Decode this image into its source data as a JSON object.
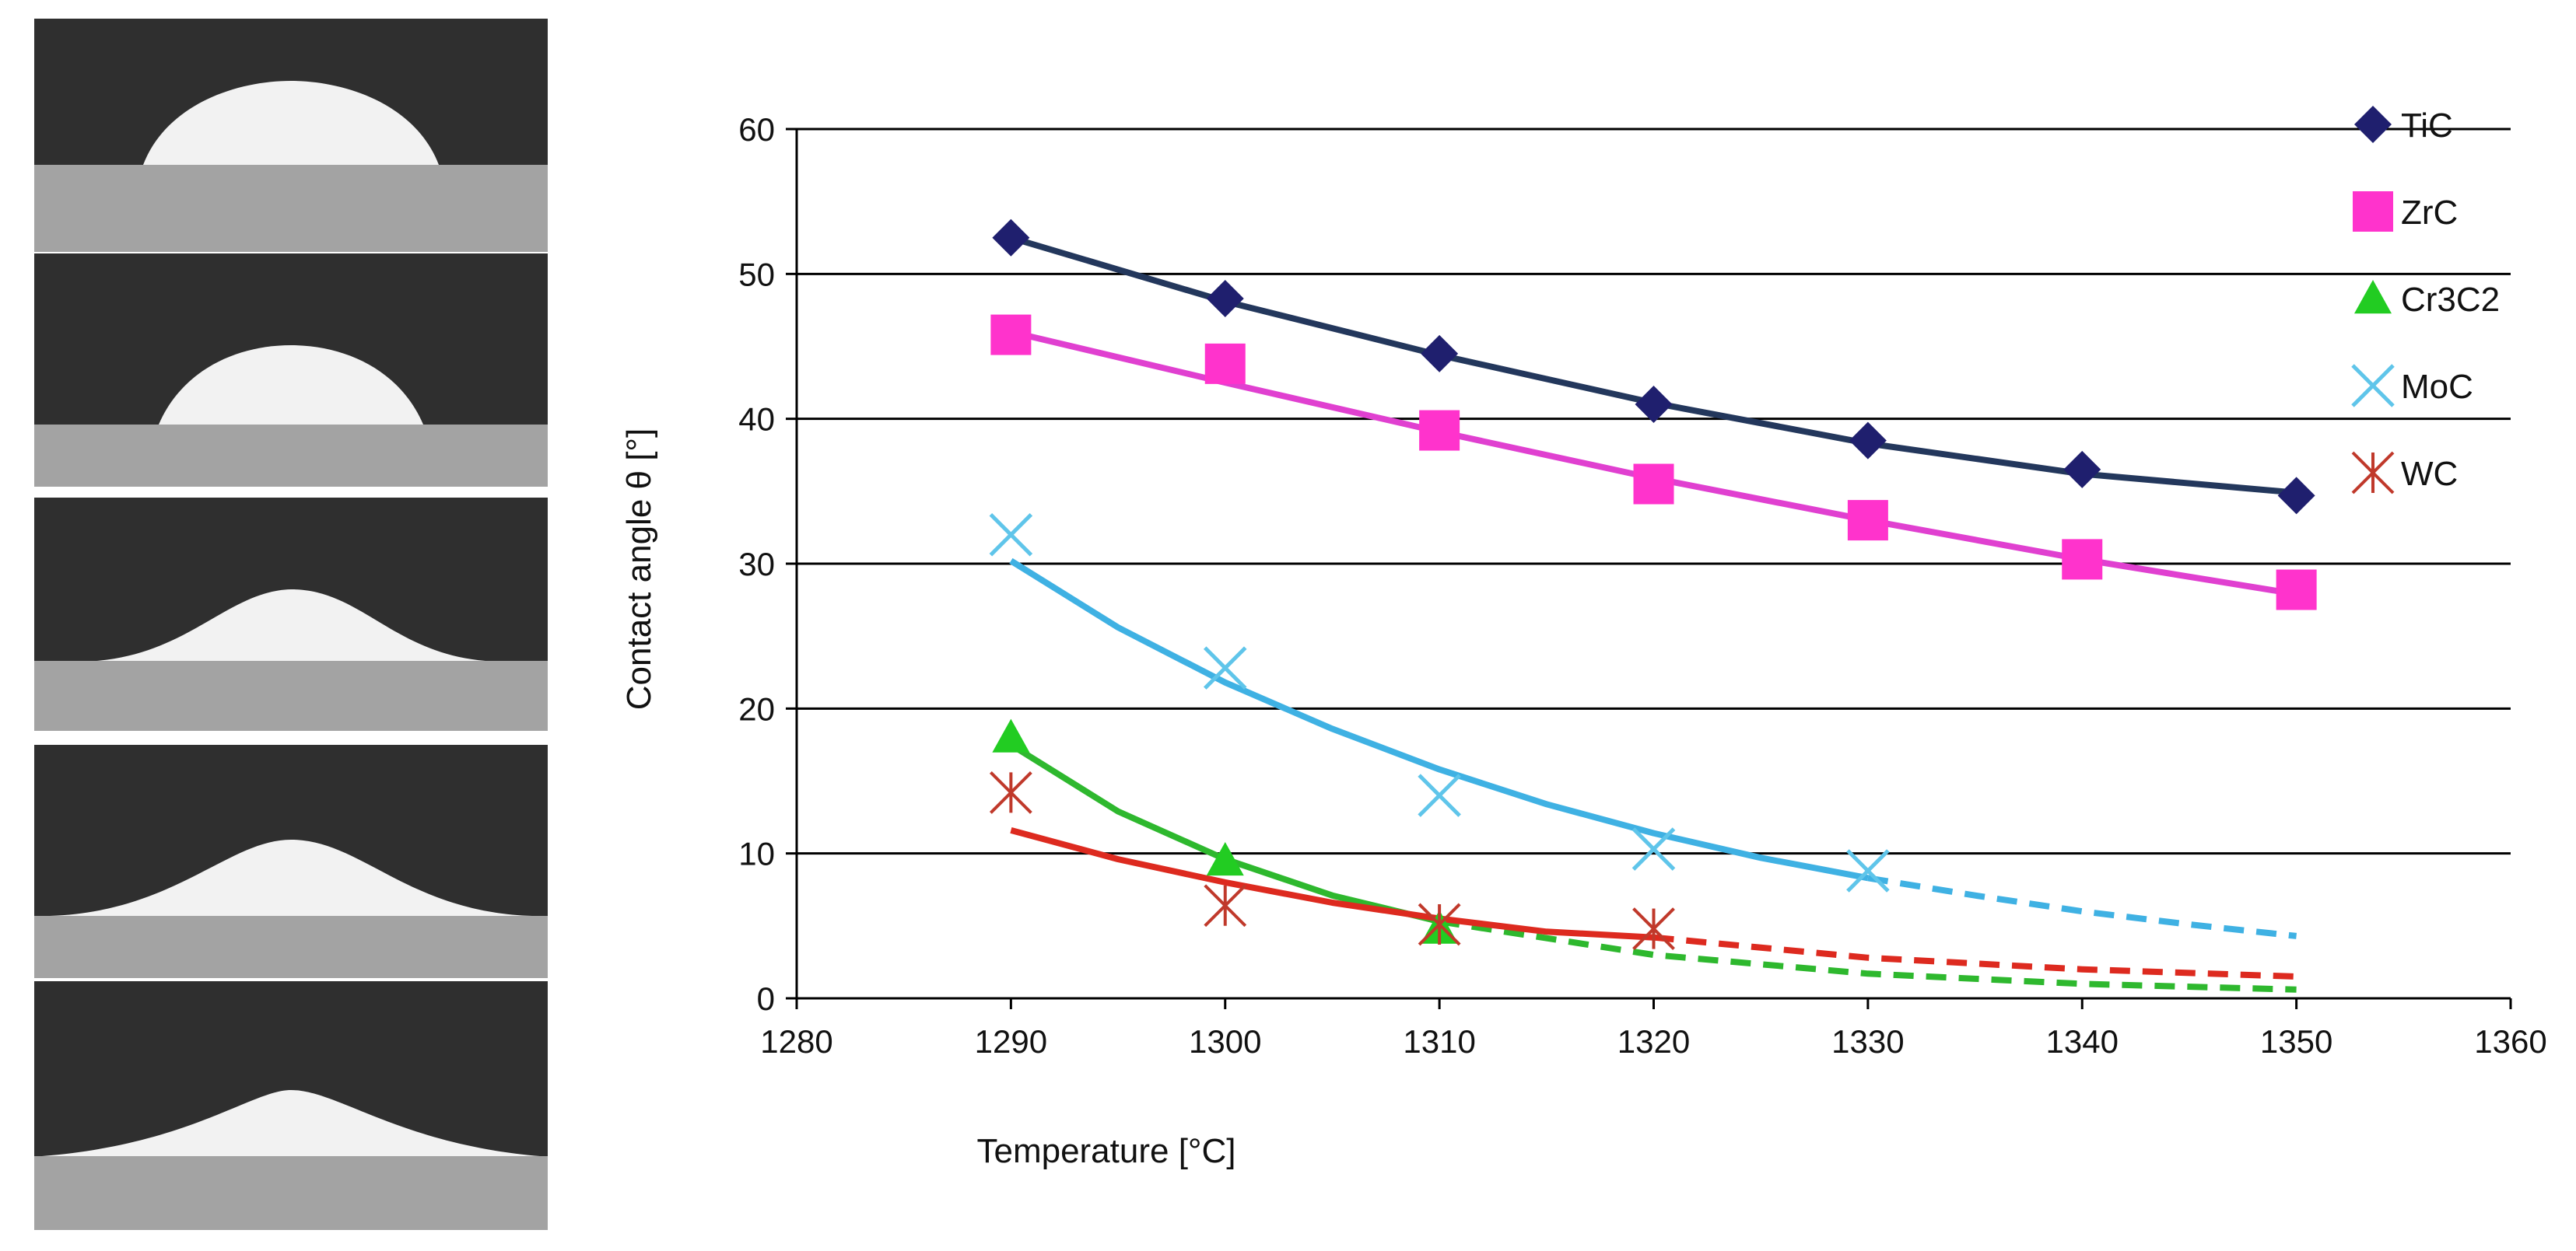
{
  "chart_data": {
    "type": "line",
    "xlabel": "Temperature [°C]",
    "ylabel": "Contact angle θ [°]",
    "xlim": [
      1280,
      1360
    ],
    "ylim": [
      0,
      60
    ],
    "xticks": [
      1280,
      1290,
      1300,
      1310,
      1320,
      1330,
      1340,
      1350,
      1360
    ],
    "yticks": [
      0,
      10,
      20,
      30,
      40,
      50,
      60
    ],
    "grid": "horizontal",
    "legend": "right",
    "series": [
      {
        "name": "TiC",
        "marker": "diamond",
        "color": "#1f1f6e",
        "line_color": "#23375c",
        "x": [
          1290,
          1300,
          1310,
          1320,
          1330,
          1340,
          1350
        ],
        "y": [
          52.5,
          48.3,
          44.5,
          41.0,
          38.5,
          36.5,
          34.7
        ],
        "fit_solid": [
          [
            1290,
            52.5
          ],
          [
            1300,
            48.1
          ],
          [
            1310,
            44.4
          ],
          [
            1320,
            41.1
          ],
          [
            1330,
            38.3
          ],
          [
            1340,
            36.2
          ],
          [
            1350,
            34.9
          ]
        ],
        "fit_dashed": []
      },
      {
        "name": "ZrC",
        "marker": "square",
        "color": "#ff33cc",
        "line_color": "#e040d0",
        "x": [
          1290,
          1300,
          1310,
          1320,
          1330,
          1340,
          1350
        ],
        "y": [
          45.8,
          43.8,
          39.2,
          35.5,
          33.0,
          30.3,
          28.2
        ],
        "fit_solid": [
          [
            1290,
            46.0
          ],
          [
            1300,
            42.5
          ],
          [
            1310,
            39.1
          ],
          [
            1320,
            35.9
          ],
          [
            1330,
            33.0
          ],
          [
            1340,
            30.3
          ],
          [
            1350,
            27.9
          ]
        ],
        "fit_dashed": []
      },
      {
        "name": "Cr3C2",
        "marker": "triangle",
        "color": "#22cc22",
        "line_color": "#2eb82e",
        "x": [
          1290,
          1300,
          1310
        ],
        "y": [
          18.0,
          9.5,
          4.8
        ],
        "fit_solid": [
          [
            1290,
            17.5
          ],
          [
            1295,
            12.9
          ],
          [
            1300,
            9.6
          ],
          [
            1305,
            7.1
          ],
          [
            1310,
            5.3
          ]
        ],
        "fit_dashed": [
          [
            1310,
            5.3
          ],
          [
            1320,
            3.0
          ],
          [
            1330,
            1.7
          ],
          [
            1340,
            1.0
          ],
          [
            1350,
            0.6
          ]
        ]
      },
      {
        "name": "MoC",
        "marker": "x",
        "color": "#5fc5ea",
        "line_color": "#3fb1e3",
        "x": [
          1290,
          1300,
          1310,
          1320,
          1330
        ],
        "y": [
          32.0,
          22.8,
          14.0,
          10.3,
          8.8
        ],
        "fit_solid": [
          [
            1290,
            30.2
          ],
          [
            1295,
            25.6
          ],
          [
            1300,
            21.8
          ],
          [
            1305,
            18.6
          ],
          [
            1310,
            15.8
          ],
          [
            1315,
            13.4
          ],
          [
            1320,
            11.4
          ],
          [
            1325,
            9.7
          ],
          [
            1330,
            8.3
          ]
        ],
        "fit_dashed": [
          [
            1330,
            8.3
          ],
          [
            1335,
            7.1
          ],
          [
            1340,
            6.0
          ],
          [
            1345,
            5.1
          ],
          [
            1350,
            4.3
          ]
        ]
      },
      {
        "name": "WC",
        "marker": "asterisk",
        "color": "#c0392b",
        "line_color": "#dd2a1f",
        "x": [
          1290,
          1300,
          1310,
          1320
        ],
        "y": [
          14.2,
          6.4,
          5.1,
          4.8
        ],
        "fit_solid": [
          [
            1290,
            11.6
          ],
          [
            1295,
            9.6
          ],
          [
            1300,
            8.0
          ],
          [
            1305,
            6.6
          ],
          [
            1310,
            5.5
          ],
          [
            1315,
            4.6
          ],
          [
            1320,
            4.2
          ]
        ],
        "fit_dashed": [
          [
            1320,
            4.2
          ],
          [
            1330,
            2.8
          ],
          [
            1340,
            2.0
          ],
          [
            1350,
            1.5
          ]
        ]
      }
    ]
  },
  "drop_images": {
    "count": 5,
    "description_items": [
      "drop-1",
      "drop-2",
      "drop-3",
      "drop-4",
      "drop-5"
    ]
  }
}
